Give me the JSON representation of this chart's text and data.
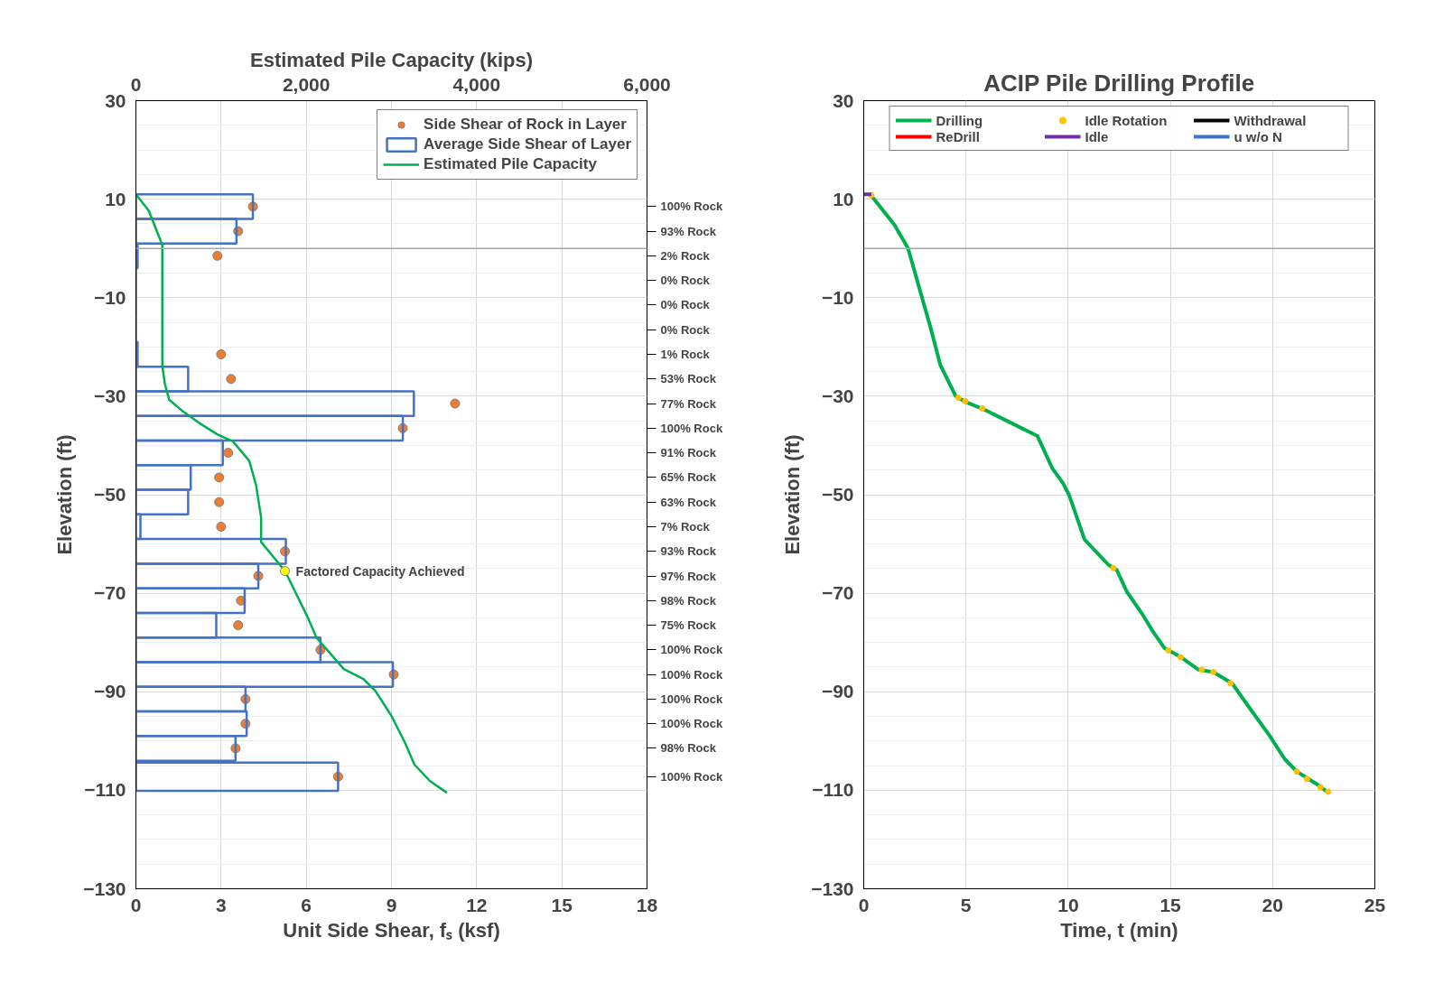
{
  "chart_data": [
    {
      "type": "bar",
      "orientation": "horizontal",
      "xlabel": "Unit Side Shear, fₛ (ksf)",
      "ylabel": "Elevation (ft)",
      "x2label": "Estimated Pile Capacity (kips)",
      "xlim": [
        0,
        18
      ],
      "xticks": [
        0,
        3,
        6,
        9,
        12,
        15,
        18
      ],
      "ylim": [
        -130,
        30
      ],
      "yticks": [
        30,
        10,
        -10,
        -30,
        -50,
        -70,
        -90,
        -110,
        -130
      ],
      "x2lim": [
        0,
        6000
      ],
      "x2ticks": [
        0,
        {
          "value": 2000,
          "label": "2,000"
        },
        {
          "value": 4000,
          "label": "4,000"
        },
        {
          "value": 6000,
          "label": "6,000"
        }
      ],
      "grid": true,
      "legend": "top right",
      "ref_lines": [
        {
          "axis": "y",
          "value": 0,
          "color": "#a6a6a6"
        }
      ],
      "annotations": [
        {
          "text": "Factored Capacity Achieved",
          "x": 5.25,
          "y": -65.5
        },
        "100% Rock",
        "93% Rock",
        "2% Rock",
        "0% Rock",
        "0% Rock",
        "0% Rock",
        "1% Rock",
        "53% Rock",
        "77% Rock",
        "100% Rock",
        "91% Rock",
        "65% Rock",
        "63% Rock",
        "7% Rock",
        "93% Rock",
        "97% Rock",
        "98% Rock",
        "75% Rock",
        "100% Rock",
        "100% Rock",
        "100% Rock",
        "100% Rock",
        "98% Rock",
        "100% Rock"
      ],
      "series": [
        {
          "name": "Side Shear of Rock in Layer",
          "type": "scatter",
          "marker": "circle",
          "color": "#ed7d31",
          "x": [
            8.5,
            3.5,
            -1.5,
            -6.5,
            -11.5,
            -16.5,
            -21.5,
            -26.5,
            -31.5,
            -36.5,
            -41.5,
            -46.5,
            -51.5,
            -56.5,
            -61.5,
            -66.5,
            -71.5,
            -76.5,
            -81.5,
            -86.5,
            -91.5,
            -96.5,
            -101.5,
            -107.25
          ],
          "values": [
            4.12,
            3.6,
            2.87,
            null,
            null,
            null,
            3.0,
            3.35,
            11.24,
            9.4,
            3.25,
            2.93,
            2.93,
            3.0,
            5.25,
            4.31,
            3.7,
            3.6,
            6.5,
            9.08,
            3.86,
            3.86,
            3.51,
            7.12
          ]
        },
        {
          "name": "Average Side Shear of Layer",
          "type": "bar",
          "color": "#4472c4",
          "x": [
            8.5,
            3.5,
            -1.5,
            -6.5,
            -11.5,
            -16.5,
            -21.5,
            -26.5,
            -31.5,
            -36.5,
            -41.5,
            -46.5,
            -51.5,
            -56.5,
            -61.5,
            -66.5,
            -71.5,
            -76.5,
            -81.5,
            -86.5,
            -91.5,
            -96.5,
            -101.5,
            -107.25
          ],
          "values": [
            4.12,
            3.54,
            0.06,
            0,
            0,
            0,
            0.06,
            1.84,
            9.79,
            9.4,
            3.06,
            1.93,
            1.84,
            0.16,
            5.28,
            4.31,
            3.83,
            2.83,
            6.5,
            9.05,
            3.86,
            3.9,
            3.51,
            7.12
          ]
        },
        {
          "name": "Estimated Pile Capacity",
          "type": "line",
          "axis": "x2",
          "color": "#00b050",
          "x": [
            11,
            7.7,
            0.7,
            -23.8,
            -27.5,
            -30.7,
            -33.2,
            -35.4,
            -37.7,
            -39.2,
            -43.1,
            -48.0,
            -54.6,
            -59.6,
            -65.5,
            -75.0,
            -79.0,
            -85.4,
            -87.4,
            -89.8,
            -94.9,
            -100.4,
            -104.8,
            -108.1,
            -110.5
          ],
          "values": [
            0,
            150,
            310,
            310,
            340,
            390,
            560,
            740,
            950,
            1140,
            1330,
            1410,
            1470,
            1470,
            1750,
            2020,
            2120,
            2440,
            2670,
            2810,
            3000,
            3160,
            3270,
            3450,
            3650
          ]
        },
        {
          "type": "scatter",
          "marker": "circle",
          "axis": "x2",
          "color": "#ffff00",
          "x": [
            -65.5
          ],
          "values": [
            1750
          ]
        }
      ]
    },
    {
      "type": "line",
      "title": "ACIP Pile Drilling Profile",
      "xlabel": "Time, t (min)",
      "ylabel": "Elevation (ft)",
      "xlim": [
        0,
        25
      ],
      "xticks": [
        0,
        5,
        10,
        15,
        20,
        25
      ],
      "ylim": [
        -130,
        30
      ],
      "yticks": [
        30,
        10,
        -10,
        -30,
        -50,
        -70,
        -90,
        -110,
        -130
      ],
      "grid": true,
      "legend": "top",
      "ref_lines": [
        {
          "axis": "y",
          "value": 0,
          "color": "#a6a6a6"
        }
      ],
      "series": [
        {
          "name": "Drilling",
          "color": "#00b050",
          "x": [
            0.37,
            1.5,
            2.17,
            2.92,
            3.25,
            3.75,
            4.5,
            5.0,
            5.83,
            7.0,
            8.5,
            9.22,
            9.75,
            10.05,
            10.8,
            11.96,
            12.38,
            12.87,
            13.62,
            14.12,
            14.7,
            15.45,
            16.36,
            17.1,
            18.02,
            18.77,
            19.85,
            20.6,
            21.18,
            22.1,
            22.67
          ],
          "values": [
            10.7,
            4.8,
            0.0,
            -11.0,
            -15.8,
            -23.7,
            -30.0,
            -31.2,
            -32.6,
            -35.0,
            -38.1,
            -44.6,
            -47.7,
            -50.1,
            -59.1,
            -64.2,
            -65.3,
            -69.7,
            -74.2,
            -77.6,
            -81.1,
            -82.8,
            -85.5,
            -86.0,
            -88.3,
            -92.7,
            -98.9,
            -103.7,
            -106.2,
            -108.6,
            -110.3
          ]
        },
        {
          "name": "ReDrill",
          "color": "#ff0000"
        },
        {
          "name": "Idle Rotation",
          "type": "scatter",
          "marker": "circle",
          "color": "#ffc000",
          "x": [
            0.37,
            4.63,
            4.97,
            5.8,
            12.21,
            14.9,
            15.5,
            16.53,
            17.1,
            17.94,
            21.18,
            21.68,
            22.34,
            22.72
          ],
          "values": [
            10.8,
            -30.3,
            -31.0,
            -32.5,
            -64.9,
            -81.6,
            -83.0,
            -85.5,
            -86.0,
            -88.3,
            -106.2,
            -107.7,
            -109.4,
            -110.3
          ]
        },
        {
          "name": "Idle",
          "color": "#7030a0",
          "x": [
            0,
            0.37
          ],
          "values": [
            11,
            11
          ]
        },
        {
          "name": "Withdrawal",
          "color": "#000000"
        },
        {
          "name": "u w/o N",
          "color": "#4472c4"
        }
      ]
    }
  ]
}
